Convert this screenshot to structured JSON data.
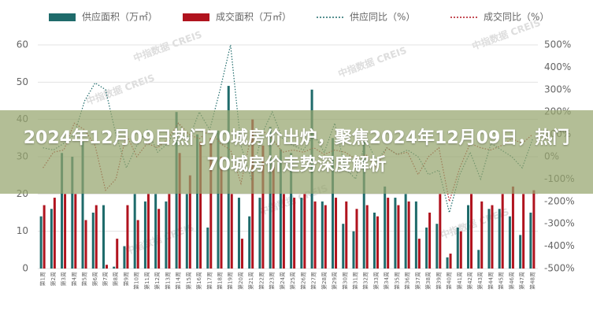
{
  "chart_data": {
    "type": "combo",
    "title": "2024年12月09日热门70城房价出炉，聚焦2024年12月09日，热门70城房价走势深度解析",
    "watermark": "中指数据 CREIS",
    "categories": [
      "第1周",
      "第2周",
      "第3周",
      "第4周",
      "第5周",
      "第6周",
      "第7周",
      "第8周",
      "第9周",
      "第10周",
      "第11周",
      "第12周",
      "第13周",
      "第14周",
      "第15周",
      "第16周",
      "第17周",
      "第18周",
      "第19周",
      "第20周",
      "第21周",
      "第22周",
      "第23周",
      "第24周",
      "第25周",
      "第26周",
      "第27周",
      "第28周",
      "第29周",
      "第30周",
      "第31周",
      "第32周",
      "第33周",
      "第34周",
      "第35周",
      "第36周",
      "第37周",
      "第38周",
      "第39周",
      "第40周",
      "第41周",
      "第42周",
      "第43周",
      "第44周",
      "第45周",
      "第46周",
      "第47周",
      "第48周"
    ],
    "series": [
      {
        "name": "供应面积（万㎡）",
        "color": "#1f6b6b",
        "kind": "bar",
        "values": [
          14,
          16,
          31,
          30,
          34,
          15,
          17,
          0.5,
          6,
          20,
          18,
          20,
          18,
          42,
          20,
          36,
          11,
          37,
          49,
          19,
          14,
          19,
          38,
          32,
          31,
          19,
          48,
          18,
          35,
          12,
          10,
          34,
          15,
          22,
          19,
          20,
          18,
          11,
          12,
          3,
          11,
          17,
          5,
          16,
          16,
          14,
          9,
          15
        ]
      },
      {
        "name": "成交面积（万㎡）",
        "color": "#b0131e",
        "kind": "bar",
        "values": [
          17,
          19,
          20,
          20,
          13,
          17,
          1,
          8,
          17,
          13,
          20,
          16,
          20,
          31,
          25,
          34,
          35,
          30,
          20,
          8,
          40,
          33,
          28,
          20,
          19,
          20,
          18,
          17,
          19,
          18,
          16,
          17,
          14,
          19,
          17,
          18,
          8,
          15,
          20,
          4,
          10,
          20,
          18,
          17,
          20,
          22,
          20,
          21
        ]
      },
      {
        "name": "供应同比（%）",
        "color": "#1f6b6b",
        "kind": "line",
        "axis": "y2",
        "values": [
          40,
          30,
          60,
          100,
          250,
          330,
          300,
          100,
          -50,
          50,
          120,
          20,
          60,
          150,
          80,
          200,
          120,
          300,
          500,
          50,
          -100,
          100,
          200,
          80,
          50,
          30,
          100,
          20,
          150,
          -50,
          -100,
          80,
          -20,
          40,
          10,
          30,
          0,
          -80,
          -60,
          -250,
          -80,
          20,
          -100,
          60,
          30,
          0,
          -50,
          80
        ]
      },
      {
        "name": "成交同比（%）",
        "color": "#b0131e",
        "kind": "line",
        "axis": "y2",
        "values": [
          -50,
          20,
          30,
          150,
          120,
          50,
          -150,
          -100,
          100,
          0,
          60,
          40,
          80,
          150,
          100,
          80,
          120,
          60,
          30,
          -120,
          100,
          120,
          80,
          20,
          30,
          20,
          40,
          10,
          30,
          20,
          -10,
          10,
          -50,
          40,
          10,
          20,
          -80,
          0,
          40,
          -200,
          -50,
          60,
          40,
          30,
          50,
          80,
          60,
          100
        ]
      }
    ],
    "ylim": [
      0,
      60
    ],
    "yticks": [
      0,
      10,
      20,
      30,
      40,
      50,
      60
    ],
    "y2lim": [
      -500,
      500
    ],
    "y2ticks": [
      {
        "value": -500,
        "label": "-500%"
      },
      {
        "value": -400,
        "label": "-400%"
      },
      {
        "value": -300,
        "label": "-300%"
      },
      {
        "value": -200,
        "label": "-200%"
      },
      {
        "value": -100,
        "label": "-100%"
      },
      {
        "value": 0,
        "label": "0%"
      },
      {
        "value": 100,
        "label": "100%"
      },
      {
        "value": 200,
        "label": "200%"
      },
      {
        "value": 300,
        "label": "300%"
      },
      {
        "value": 400,
        "label": "400%"
      },
      {
        "value": 500,
        "label": "500%"
      }
    ],
    "grid": true
  }
}
